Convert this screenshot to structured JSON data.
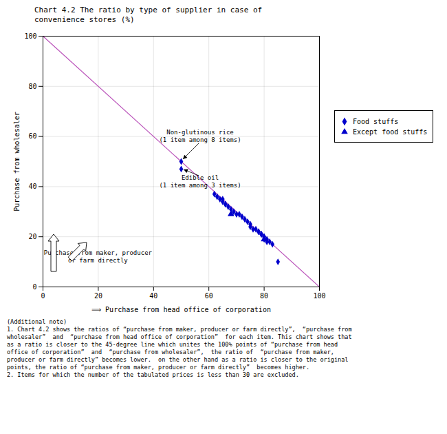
{
  "chart_data": {
    "type": "scatter",
    "title": "Chart 4.2 The ratio by type of supplier in case of\nconvenience stores (%)",
    "xlabel": "⟹ Purchase from head office of corporation",
    "ylabel": "Purchase from wholesaler",
    "xlim": [
      0,
      100
    ],
    "ylim": [
      0,
      100
    ],
    "xticks": [
      0,
      20,
      40,
      60,
      80,
      100
    ],
    "yticks": [
      0,
      20,
      40,
      60,
      80,
      100
    ],
    "grid": true,
    "legend": "right",
    "series": [
      {
        "name": "Food stuffs",
        "color": "#0000CC",
        "marker": "diamond",
        "x": [
          62,
          63,
          64,
          65,
          65,
          66,
          66,
          67,
          68,
          69,
          70,
          71,
          72,
          73,
          74,
          75,
          75,
          76,
          77,
          78,
          78,
          79,
          79,
          80,
          80,
          80,
          81,
          81,
          82,
          83,
          85,
          50,
          50
        ],
        "y": [
          37,
          36,
          35,
          35,
          34,
          33,
          33,
          32,
          31,
          30,
          29,
          29,
          28,
          27,
          26,
          25,
          24,
          23,
          23,
          22,
          22,
          21,
          21,
          20,
          20,
          19,
          19,
          18,
          18,
          17,
          10,
          50,
          47
        ]
      },
      {
        "name": "Except food stuffs",
        "color": "#0000CC",
        "marker": "triangle",
        "x": [
          68,
          80
        ],
        "y": [
          29,
          19
        ]
      }
    ],
    "reference_line": {
      "x": [
        0,
        100
      ],
      "y": [
        100,
        0
      ],
      "color": "#BB55BB"
    },
    "annotations": [
      {
        "text": "Non-glutinous rice\n(1 item among 8 items)",
        "x": 50,
        "y": 50,
        "arrow": true
      },
      {
        "text": "Edible oil\n(1 item among 3 items)",
        "x": 50,
        "y": 47,
        "arrow": true
      },
      {
        "text": "Purchase from maker, producer\nor farm directly",
        "x": 20,
        "y": 9,
        "arrow": false
      }
    ],
    "notes": [
      "(Additional note)",
      "1. Chart 4.2 shows the ratios of “purchase from maker, producer or farm directly”,  “purchase from",
      "wholesaler”  and  “purchase from head office of corporation”  for each item. This chart shows that",
      "as a ratio is closer to the 45-degree line which unites the 100% points of “purchase from head",
      "office of corporation”  and  “purchase from wholesaler”,  the ratio of  “purchase from maker,",
      "producer or farm directly” becomes lower.  on the other hand as a ratio is closer to the original",
      "points, the ratio of “purchase from maker, producer or farm directly”  becomes higher.",
      "2. Items for which the number of the tabulated prices is less than 30 are excluded."
    ]
  }
}
